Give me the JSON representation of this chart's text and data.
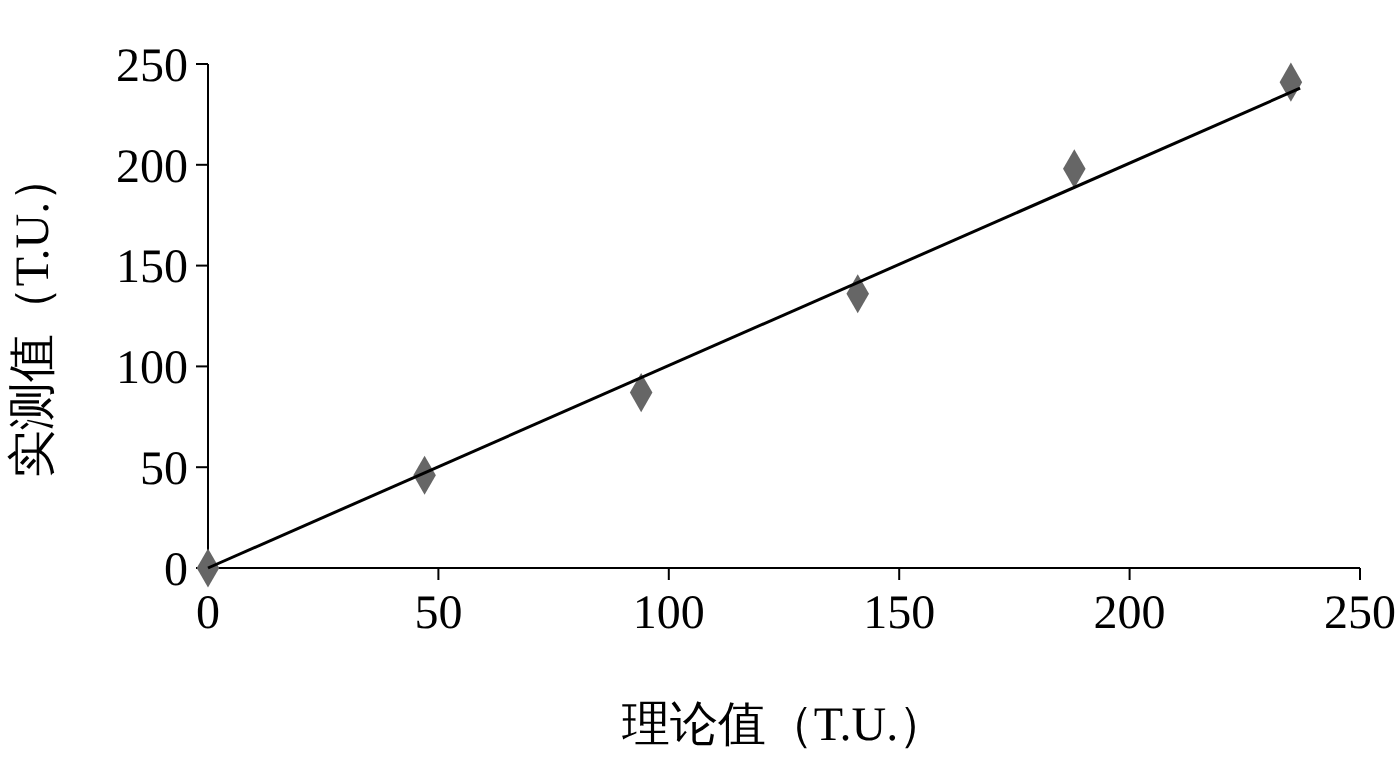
{
  "chart_data": {
    "type": "scatter",
    "xlabel": "理论值（T.U.）",
    "ylabel": "实测值（T.U.）",
    "xlim": [
      0,
      250
    ],
    "ylim": [
      0,
      250
    ],
    "xticks": [
      0,
      50,
      100,
      150,
      200,
      250
    ],
    "yticks": [
      0,
      50,
      100,
      150,
      200,
      250
    ],
    "grid": false,
    "marker": "diamond",
    "series": [
      {
        "color": "#666666",
        "x": [
          0,
          47,
          94,
          141,
          188,
          235
        ],
        "values": [
          0,
          46,
          87,
          136,
          198,
          241
        ]
      },
      {
        "type": "line",
        "color": "#000000",
        "x": [
          0,
          237
        ],
        "values": [
          0,
          238
        ],
        "marker": "none"
      }
    ]
  }
}
